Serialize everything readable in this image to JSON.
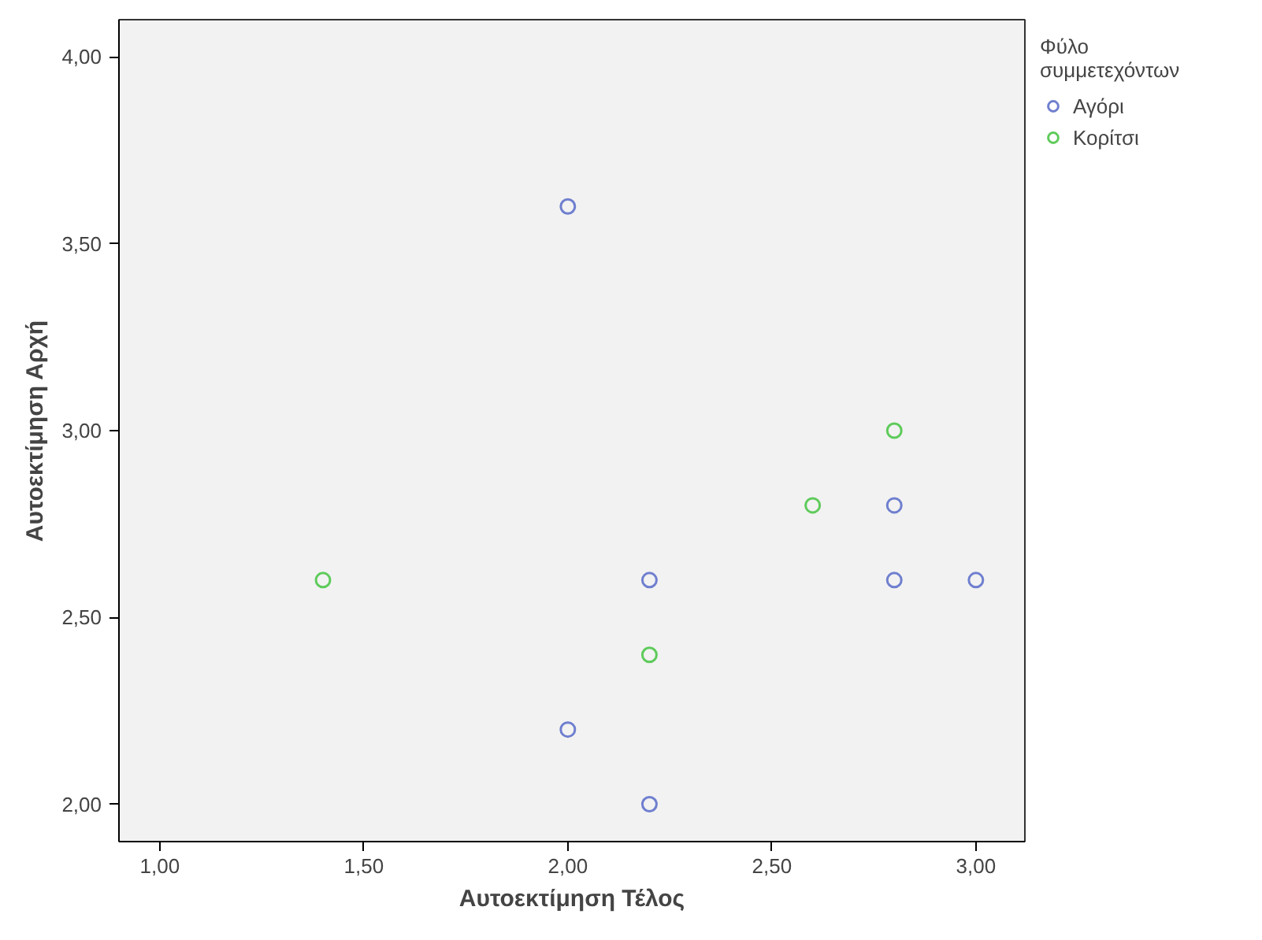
{
  "chart_data": {
    "type": "scatter",
    "xlabel": "Αυτοεκτίμηση Τέλος",
    "ylabel": "Αυτοεκτίμηση Αρχή",
    "legend_title": "Φύλο συμμετεχόντων",
    "series": [
      {
        "name": "Αγόρι",
        "color": "#6f7fcf",
        "x": [
          2.0,
          2.8,
          2.8,
          3.0,
          2.2,
          2.0,
          2.2
        ],
        "values": [
          3.6,
          2.8,
          2.6,
          2.6,
          2.6,
          2.2,
          2.0
        ]
      },
      {
        "name": "Κορίτσι",
        "color": "#5ecb5a",
        "x": [
          2.8,
          2.6,
          1.4,
          2.2
        ],
        "values": [
          3.0,
          2.8,
          2.6,
          2.4
        ]
      }
    ],
    "xlim": [
      0.9,
      3.12
    ],
    "ylim": [
      1.9,
      4.1
    ],
    "xticks": [
      {
        "value": 1.0,
        "label": "1,00"
      },
      {
        "value": 1.5,
        "label": "1,50"
      },
      {
        "value": 2.0,
        "label": "2,00"
      },
      {
        "value": 2.5,
        "label": "2,50"
      },
      {
        "value": 3.0,
        "label": "3,00"
      }
    ],
    "yticks": [
      {
        "value": 2.0,
        "label": "2,00"
      },
      {
        "value": 2.5,
        "label": "2,50"
      },
      {
        "value": 3.0,
        "label": "3,00"
      },
      {
        "value": 3.5,
        "label": "3,50"
      },
      {
        "value": 4.0,
        "label": "4,00"
      }
    ],
    "grid": false,
    "legend": "top right",
    "marker": "circle"
  }
}
